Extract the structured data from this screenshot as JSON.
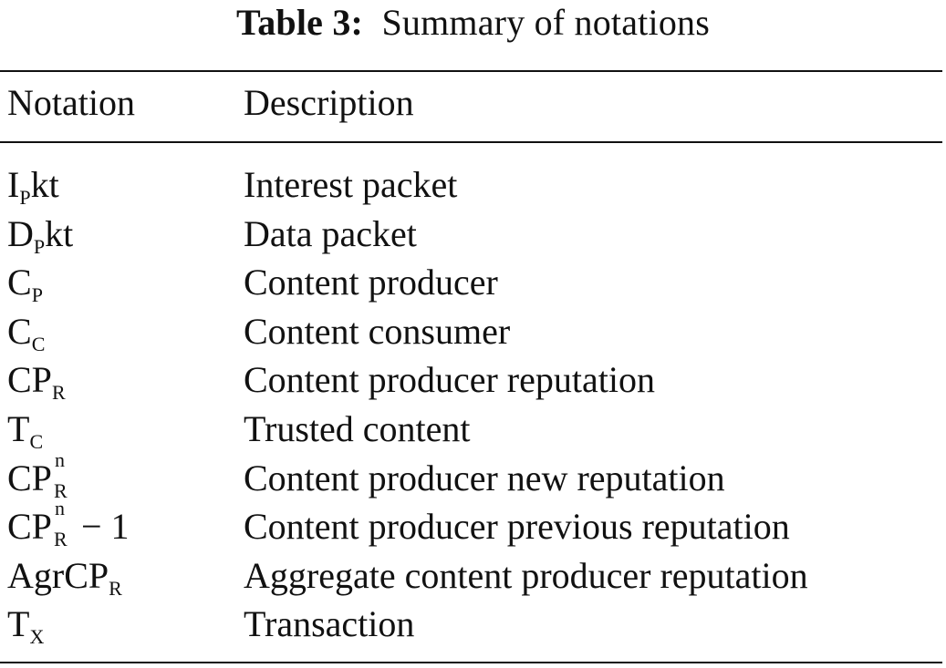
{
  "caption": {
    "label": "Table 3:",
    "title": "Summary of notations"
  },
  "table": {
    "headers": [
      "Notation",
      "Description"
    ],
    "rows": [
      {
        "notation": {
          "base": "I",
          "sub": "P",
          "tail": "kt"
        },
        "description": "Interest packet"
      },
      {
        "notation": {
          "base": "D",
          "sub": "P",
          "tail": "kt"
        },
        "description": "Data packet"
      },
      {
        "notation": {
          "base": "C",
          "sub": "P",
          "tail": ""
        },
        "description": "Content producer"
      },
      {
        "notation": {
          "base": "C",
          "sub": "C",
          "tail": ""
        },
        "description": "Content consumer"
      },
      {
        "notation": {
          "base": "CP",
          "sub": "R",
          "tail": ""
        },
        "description": "Content producer reputation"
      },
      {
        "notation": {
          "base": "T",
          "sub": "C",
          "tail": ""
        },
        "description": "Trusted content"
      },
      {
        "notation": {
          "base": "CP",
          "sup": "n",
          "sub": "R",
          "tail": ""
        },
        "description": "Content producer new reputation"
      },
      {
        "notation": {
          "base": "CP",
          "sup": "n",
          "sub": "R",
          "tail": "− 1"
        },
        "description": "Content producer previous reputation"
      },
      {
        "notation": {
          "base": "AgrCP",
          "sub": "R",
          "tail": ""
        },
        "description": "Aggregate content producer reputation"
      },
      {
        "notation": {
          "base": "T",
          "sub": "X",
          "tail": ""
        },
        "description": "Transaction"
      }
    ]
  }
}
